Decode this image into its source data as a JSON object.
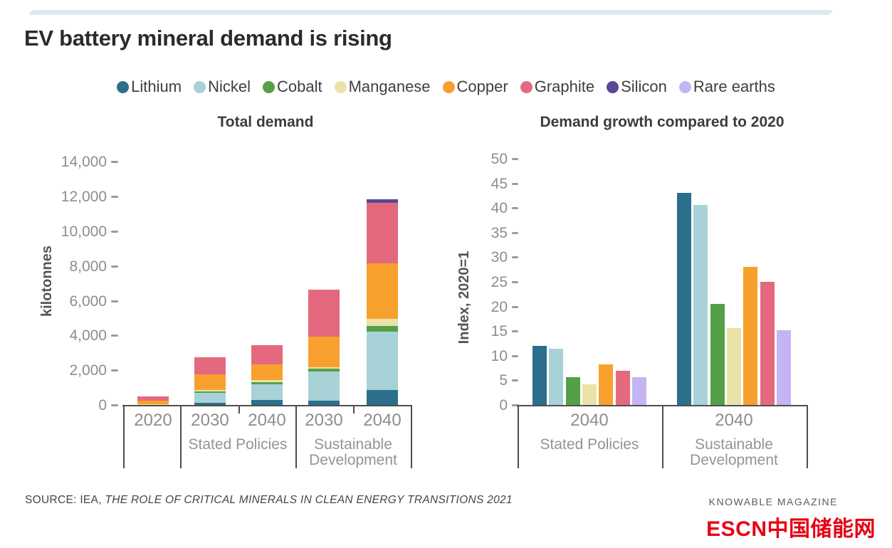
{
  "page": {
    "title": "EV battery mineral demand is rising",
    "accent_strip_color": "#dde9ec",
    "footer": {
      "source_prefix": "SOURCE: IEA, ",
      "source_title": "THE ROLE OF CRITICAL MINERALS IN CLEAN ENERGY TRANSITIONS",
      "source_year": " 2021",
      "brand": "KNOWABLE MAGAZINE",
      "watermark": "ESCN中国储能网",
      "watermark_color": "#e60113"
    }
  },
  "legend": {
    "items": [
      {
        "label": "Lithium",
        "color": "#2b6f8d"
      },
      {
        "label": "Nickel",
        "color": "#a8d1d8"
      },
      {
        "label": "Cobalt",
        "color": "#55a047"
      },
      {
        "label": "Manganese",
        "color": "#e9e3a7"
      },
      {
        "label": "Copper",
        "color": "#f8a02d"
      },
      {
        "label": "Graphite",
        "color": "#e5697e"
      },
      {
        "label": "Silicon",
        "color": "#5a4795"
      },
      {
        "label": "Rare earths",
        "color": "#c4b4f3"
      }
    ]
  },
  "chart_data": [
    {
      "type": "bar",
      "variant": "stacked",
      "title": "Total demand",
      "ylabel": "kilotonnes",
      "unit": "kilotonnes",
      "ylim": [
        0,
        14000
      ],
      "ytick_step": 2000,
      "ytick_labels": [
        "0",
        "2,000",
        "4,000",
        "6,000",
        "8,000",
        "10,000",
        "12,000",
        "14,000"
      ],
      "grid": false,
      "legend_position": "top",
      "series_order": [
        "Lithium",
        "Nickel",
        "Cobalt",
        "Manganese",
        "Copper",
        "Graphite",
        "Silicon"
      ],
      "bars": [
        {
          "year": "2020",
          "scenario": "",
          "total": 550,
          "values": {
            "Lithium": 20,
            "Nickel": 50,
            "Cobalt": 15,
            "Manganese": 15,
            "Copper": 200,
            "Graphite": 250,
            "Silicon": 0
          }
        },
        {
          "year": "2030",
          "scenario": "Stated Policies",
          "total": 2800,
          "values": {
            "Lithium": 150,
            "Nickel": 580,
            "Cobalt": 100,
            "Manganese": 70,
            "Copper": 900,
            "Graphite": 1000,
            "Silicon": 0
          }
        },
        {
          "year": "2040",
          "scenario": "Stated Policies",
          "total": 3500,
          "values": {
            "Lithium": 330,
            "Nickel": 900,
            "Cobalt": 130,
            "Manganese": 120,
            "Copper": 900,
            "Graphite": 1120,
            "Silicon": 0
          }
        },
        {
          "year": "2030",
          "scenario": "Sustainable Development",
          "total": 6700,
          "values": {
            "Lithium": 300,
            "Nickel": 1650,
            "Cobalt": 200,
            "Manganese": 80,
            "Copper": 1750,
            "Graphite": 2720,
            "Silicon": 0
          }
        },
        {
          "year": "2040",
          "scenario": "Sustainable Development",
          "total": 11900,
          "values": {
            "Lithium": 900,
            "Nickel": 3350,
            "Cobalt": 350,
            "Manganese": 400,
            "Copper": 3200,
            "Graphite": 3500,
            "Silicon": 200
          }
        }
      ],
      "group_labels": [
        "",
        "Stated Policies",
        "Sustainable Development"
      ]
    },
    {
      "type": "bar",
      "variant": "grouped",
      "title": "Demand growth compared to 2020",
      "ylabel": "Index, 2020=1",
      "ylim": [
        0,
        50
      ],
      "ytick_step": 5,
      "ytick_labels": [
        "0",
        "5",
        "10",
        "15",
        "20",
        "25",
        "30",
        "35",
        "40",
        "45",
        "50"
      ],
      "grid": false,
      "series_order": [
        "Lithium",
        "Nickel",
        "Cobalt",
        "Manganese",
        "Copper",
        "Graphite",
        "Rare earths"
      ],
      "groups": [
        {
          "year": "2040",
          "scenario": "Stated Policies",
          "values": {
            "Lithium": 12.2,
            "Nickel": 11.6,
            "Cobalt": 5.8,
            "Manganese": 4.4,
            "Copper": 8.4,
            "Graphite": 7.1,
            "Rare earths": 5.8
          }
        },
        {
          "year": "2040",
          "scenario": "Sustainable Development",
          "values": {
            "Lithium": 43.2,
            "Nickel": 40.7,
            "Cobalt": 20.6,
            "Manganese": 15.7,
            "Copper": 28.2,
            "Graphite": 25.1,
            "Rare earths": 15.3
          }
        }
      ]
    }
  ]
}
